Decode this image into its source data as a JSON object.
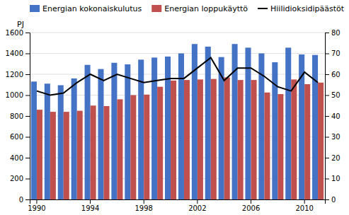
{
  "chart_data": {
    "type": "bar",
    "ylabel": "PJ",
    "categories": [
      "1990",
      null,
      null,
      null,
      "1994",
      null,
      null,
      null,
      "1998",
      null,
      null,
      null,
      "2002",
      null,
      null,
      null,
      "2006",
      null,
      null,
      null,
      "2010",
      null
    ],
    "series": [
      {
        "name": "Energian kokonaiskulutus",
        "type": "bar",
        "color": "#4472c4",
        "values": [
          1130,
          1110,
          1095,
          1160,
          1290,
          1250,
          1310,
          1295,
          1340,
          1360,
          1370,
          1400,
          1490,
          1465,
          1365,
          1490,
          1455,
          1400,
          1315,
          1455,
          1390,
          1385
        ]
      },
      {
        "name": "Energian loppukäyttö",
        "type": "bar",
        "color": "#c0504d",
        "values": [
          860,
          840,
          840,
          850,
          900,
          895,
          960,
          1000,
          1005,
          1080,
          1140,
          1145,
          1150,
          1155,
          1170,
          1145,
          1145,
          1025,
          1010,
          1150,
          1105,
          1120
        ]
      },
      {
        "name": "Hiilidioksidipäästöt",
        "type": "line",
        "axis": "y2",
        "color": "#000000",
        "values": [
          52,
          50,
          51,
          56,
          60,
          57,
          60,
          58,
          56,
          57,
          58,
          58,
          63,
          68,
          57,
          63,
          63,
          59,
          54,
          52,
          61,
          56
        ]
      }
    ],
    "ylim": [
      0,
      1600
    ],
    "yticks": [
      0,
      200,
      400,
      600,
      800,
      1000,
      1200,
      1400,
      1600
    ],
    "y2lim": [
      0,
      80
    ],
    "y2ticks": [
      0,
      10,
      20,
      30,
      40,
      50,
      60,
      70,
      80
    ],
    "grid": true,
    "legend": "top-left"
  }
}
